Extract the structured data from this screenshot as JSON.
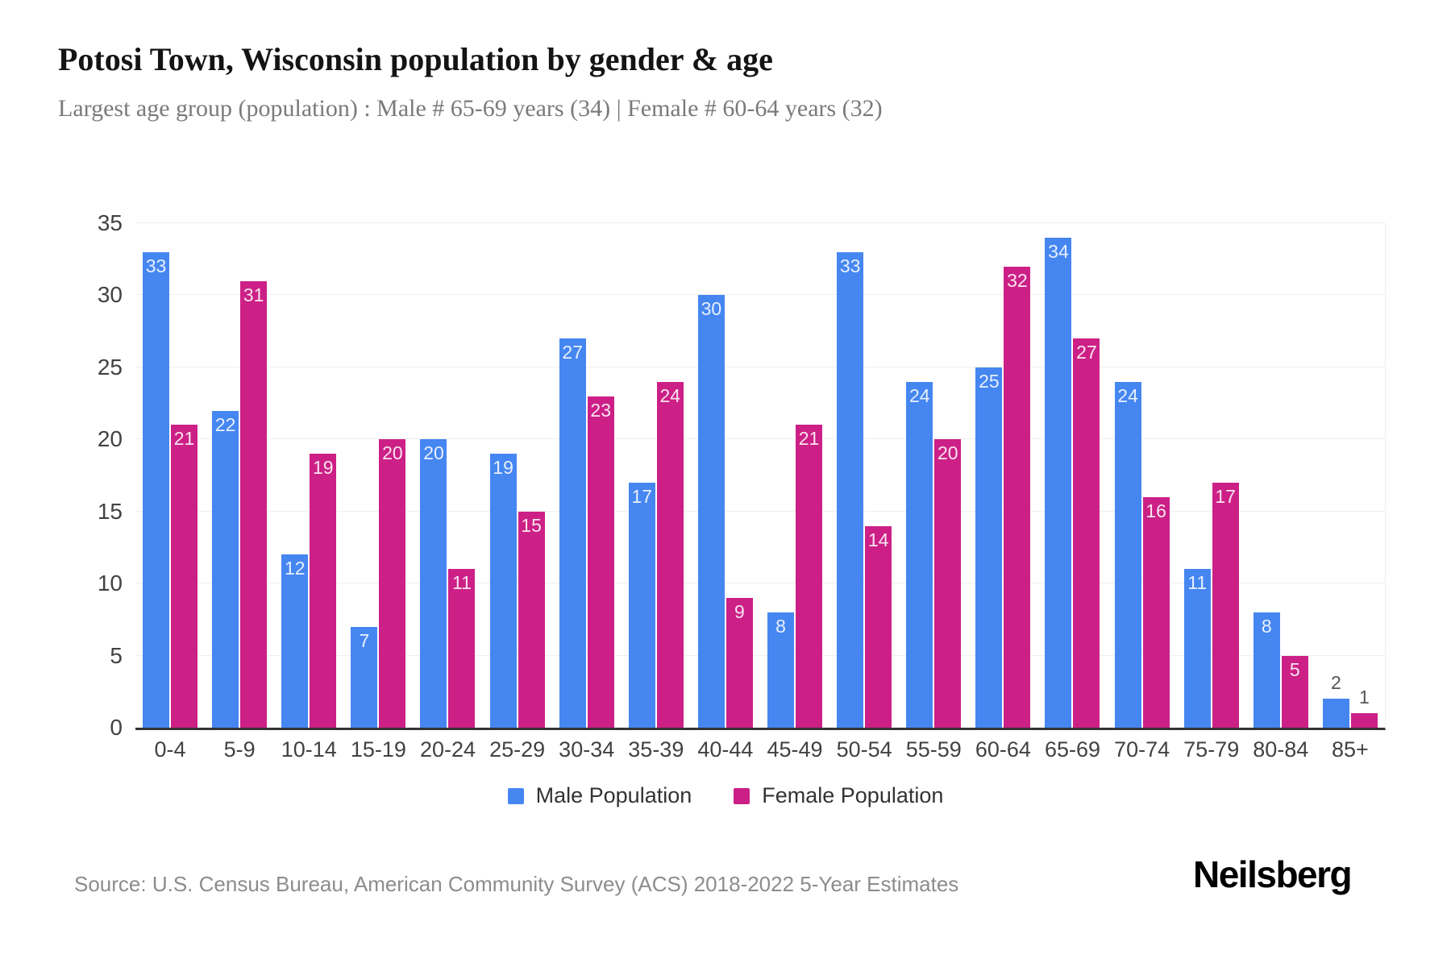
{
  "header": {
    "title": "Potosi Town, Wisconsin population by gender & age",
    "subtitle": "Largest age group (population) : Male # 65-69 years (34) | Female # 60-64 years (32)"
  },
  "chart_data": {
    "type": "bar",
    "title": "Potosi Town, Wisconsin population by gender & age",
    "subtitle": "Largest age group (population) : Male # 65-69 years (34) | Female # 60-64 years (32)",
    "categories": [
      "0-4",
      "5-9",
      "10-14",
      "15-19",
      "20-24",
      "25-29",
      "30-34",
      "35-39",
      "40-44",
      "45-49",
      "50-54",
      "55-59",
      "60-64",
      "65-69",
      "70-74",
      "75-79",
      "80-84",
      "85+"
    ],
    "series": [
      {
        "name": "Male Population",
        "color": "#4586F1",
        "values": [
          33,
          22,
          12,
          7,
          20,
          19,
          27,
          17,
          30,
          8,
          33,
          24,
          25,
          34,
          24,
          11,
          8,
          2
        ]
      },
      {
        "name": "Female Population",
        "color": "#CC2086",
        "values": [
          21,
          31,
          19,
          20,
          11,
          15,
          23,
          24,
          9,
          21,
          14,
          20,
          32,
          27,
          16,
          17,
          5,
          1
        ]
      }
    ],
    "xlabel": "",
    "ylabel": "",
    "ylim": [
      0,
      35
    ],
    "yticks": [
      0,
      5,
      10,
      15,
      20,
      25,
      30,
      35
    ],
    "grid": true,
    "legend_position": "bottom",
    "value_labels": true,
    "value_label_color_inside": "rgba(255,255,255,0.88)",
    "value_label_color_outside": "#555555"
  },
  "footer": {
    "source": "Source: U.S. Census Bureau, American Community Survey (ACS) 2018-2022 5-Year Estimates",
    "logo": "Neilsberg"
  }
}
